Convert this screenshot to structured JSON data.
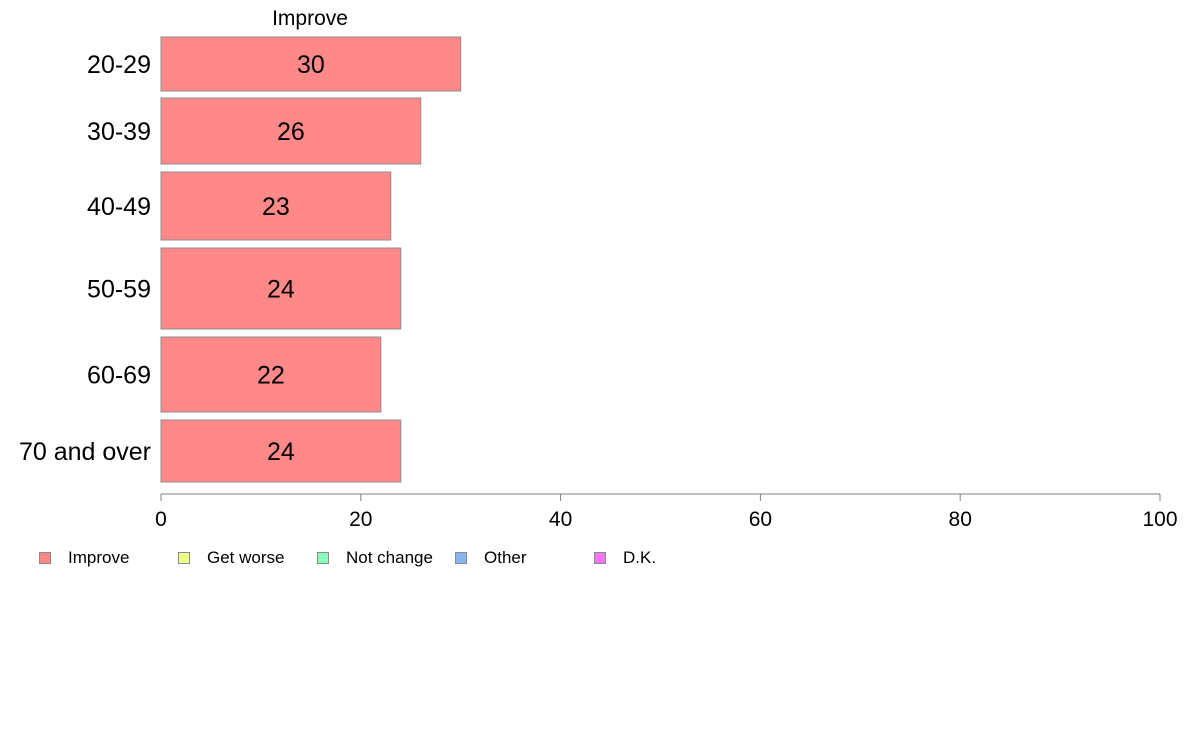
{
  "chart_data": {
    "type": "bar",
    "orientation": "horizontal",
    "series_header": "Improve",
    "categories": [
      "20-29",
      "30-39",
      "40-49",
      "50-59",
      "60-69",
      "70 and over"
    ],
    "series": [
      {
        "name": "Improve",
        "values": [
          30,
          26,
          23,
          24,
          22,
          24
        ],
        "color": "#ff8888"
      }
    ],
    "value_labels": [
      "30",
      "26",
      "23",
      "24",
      "22",
      "24"
    ],
    "xlim": [
      0,
      100
    ],
    "xticks": [
      0,
      20,
      40,
      60,
      80,
      100
    ],
    "xtick_labels": [
      "0",
      "20",
      "40",
      "60",
      "80",
      "100"
    ],
    "grid": false,
    "legend_position": "bottom-left",
    "legend": [
      {
        "label": "Improve",
        "color": "#ff8888"
      },
      {
        "label": "Get worse",
        "color": "#eeff88"
      },
      {
        "label": "Not change",
        "color": "#88ffbb"
      },
      {
        "label": "Other",
        "color": "#88b4f0"
      },
      {
        "label": "D.K.",
        "color": "#ee77ee"
      }
    ]
  }
}
